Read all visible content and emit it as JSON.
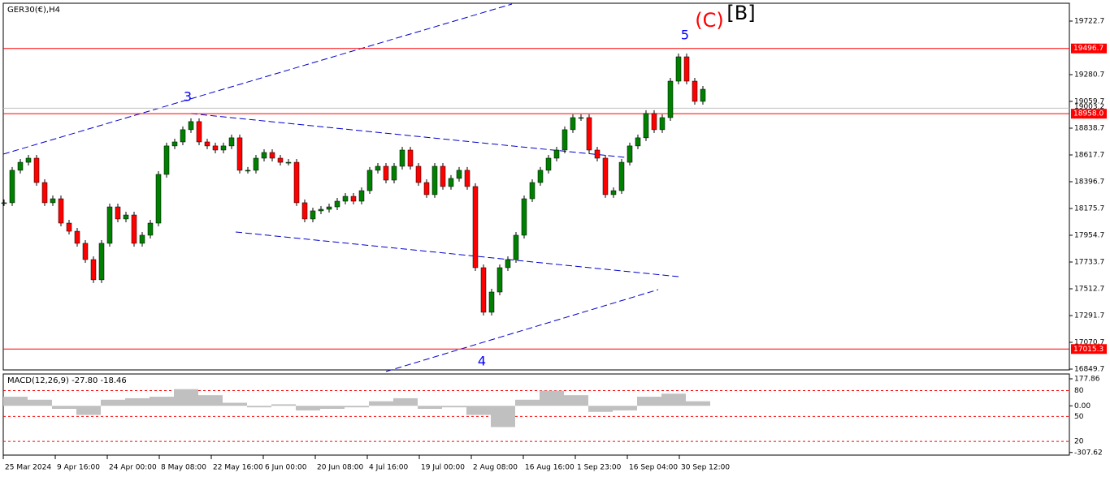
{
  "chart_data": {
    "type": "candlestick",
    "title": "GER30(€),H4",
    "x_labels": [
      "25 Mar 2024",
      "9 Apr 16:00",
      "24 Apr 00:00",
      "8 May 08:00",
      "22 May 16:00",
      "6 Jun 00:00",
      "20 Jun 08:00",
      "4 Jul 16:00",
      "19 Jul 00:00",
      "2 Aug 08:00",
      "16 Aug 16:00",
      "1 Sep 23:00",
      "16 Sep 04:00",
      "30 Sep 12:00"
    ],
    "up_color": "#008000",
    "down_color": "#ff0000",
    "values": [
      18223,
      18491,
      18557,
      18591,
      18390,
      18223,
      18256,
      18055,
      17988,
      17888,
      17754,
      17587,
      17888,
      18189,
      18089,
      18122,
      17888,
      17955,
      18055,
      18457,
      18692,
      18725,
      18826,
      18893,
      18725,
      18692,
      18658,
      18692,
      18759,
      18491,
      18491,
      18591,
      18638,
      18591,
      18557,
      18557,
      18223,
      18089,
      18156,
      18169,
      18189,
      18236,
      18276,
      18236,
      18323,
      18491,
      18524,
      18410,
      18524,
      18658,
      18524,
      18390,
      18290,
      18524,
      18357,
      18424,
      18491,
      18357,
      17687,
      17319,
      17486,
      17687,
      17754,
      17955,
      18256,
      18390,
      18491,
      18591,
      18658,
      18826,
      18926,
      18926,
      18658,
      18591,
      18290,
      18323,
      18557,
      18692,
      18759,
      18960,
      18826,
      18926,
      19227,
      19428,
      19227,
      19060,
      19160
    ],
    "ylim": [
      16843,
      19870
    ],
    "yticks": [
      19722.7,
      19280.7,
      19059.7,
      18838.7,
      18617.7,
      18396.7,
      18175.7,
      17954.7,
      17733.7,
      17512.7,
      17291.7,
      17070.7,
      16849.7
    ],
    "levels": [
      {
        "value": 19496.7,
        "label": "19496.7"
      },
      {
        "value": 18958,
        "label": "18958.0"
      },
      {
        "value": 17015.3,
        "label": "17015.3"
      }
    ],
    "level_color": "#ff0000",
    "current_price": 19003.2,
    "annotations": [
      {
        "text": "3",
        "color": "#0000ff"
      },
      {
        "text": "4",
        "color": "#0000ff"
      },
      {
        "text": "5",
        "color": "#0000ff"
      },
      {
        "text": "(C)",
        "color": "#ff0000"
      },
      {
        "text": "[B]",
        "color": "#000000"
      }
    ],
    "macd": {
      "title": "MACD(12,26,9) -27.80 -18.46",
      "color": "#c0c0c0",
      "values": [
        60,
        40,
        -20,
        -60,
        40,
        50,
        60,
        110,
        70,
        20,
        -10,
        10,
        -30,
        -20,
        -10,
        30,
        50,
        -20,
        -10,
        -60,
        -140,
        40,
        100,
        70,
        -40,
        -30,
        60,
        80,
        30
      ],
      "ylim": [
        -325,
        210
      ],
      "yticks": [
        177.86,
        {
          "value": 0,
          "label": "0.00"
        },
        -307.62
      ],
      "levels": [
        {
          "value": 100,
          "label": "80"
        },
        {
          "value": -70,
          "label": "50"
        },
        {
          "value": -235,
          "label": "20"
        }
      ]
    }
  }
}
